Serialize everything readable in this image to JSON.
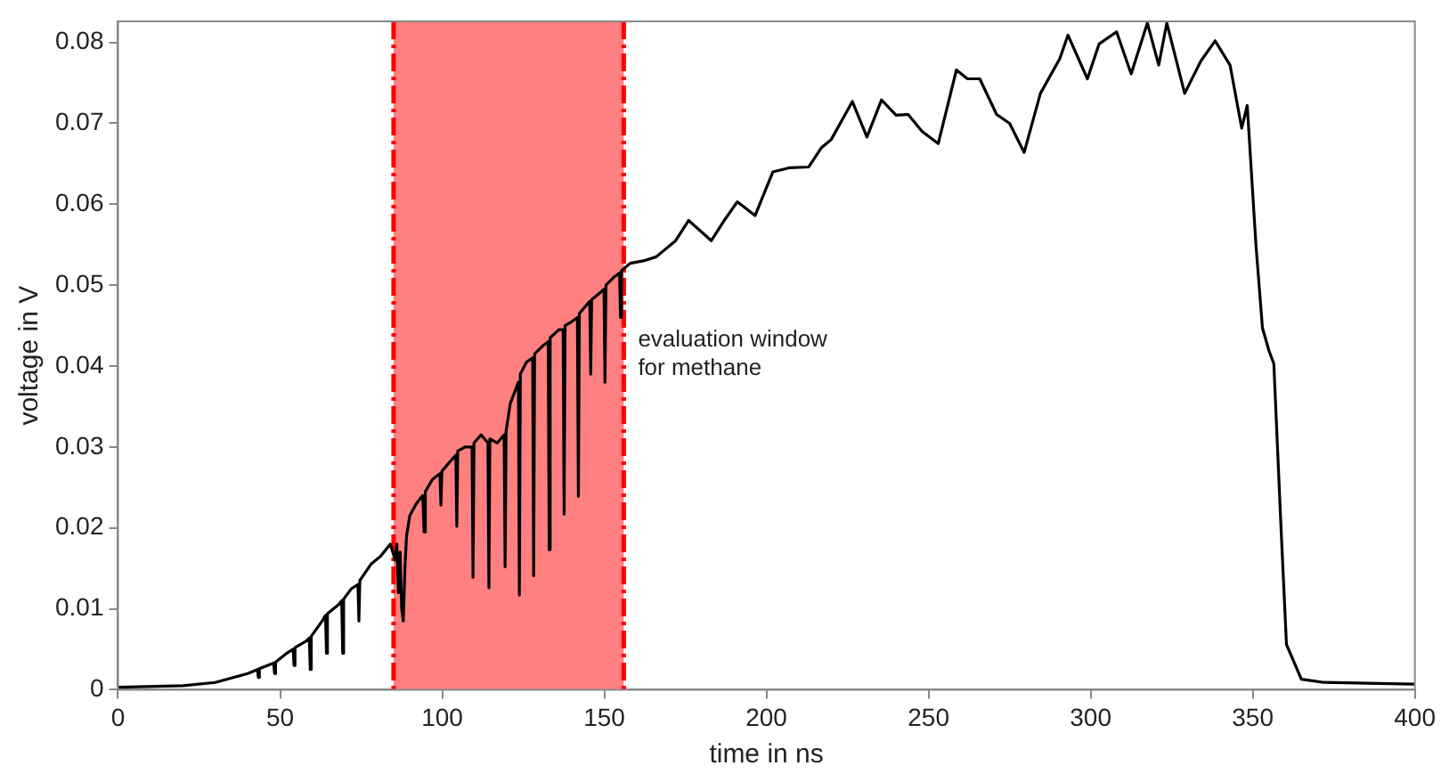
{
  "chart_data": {
    "type": "line",
    "xlabel": "time in ns",
    "ylabel": "voltage in V",
    "xlim": [
      0,
      400
    ],
    "xticks": [
      0,
      50,
      100,
      150,
      200,
      250,
      300,
      350,
      400
    ],
    "ylim": [
      0,
      0.0826
    ],
    "yticks": [
      0,
      0.01,
      0.02,
      0.03,
      0.04,
      0.05,
      0.06,
      0.07,
      0.08
    ],
    "grid": false,
    "legend": false,
    "marker": "none",
    "line_style": "solid",
    "bands": [
      {
        "axis": "x",
        "from": 85,
        "to": 156,
        "label": "evaluation window\nfor methane",
        "color": "#ff8080"
      }
    ],
    "ref_lines": [
      {
        "axis": "x",
        "value": 85,
        "color": "#ff0000",
        "line_style": "dashed"
      },
      {
        "axis": "x",
        "value": 156,
        "color": "#ff0000",
        "line_style": "dashed"
      }
    ],
    "series": [
      {
        "color": "#000000",
        "x": [
          0,
          20,
          30,
          40,
          43,
          43.3,
          43.6,
          48,
          48.3,
          48.6,
          52,
          54,
          54.3,
          54.6,
          58,
          59,
          59.3,
          59.6,
          63,
          64,
          64.3,
          64.6,
          68,
          69,
          69.3,
          69.6,
          72,
          74,
          74.3,
          74.6,
          78,
          81,
          84,
          85.5,
          86,
          86.5,
          87,
          87.5,
          88,
          88.5,
          89,
          90,
          92,
          94,
          94.4,
          94.8,
          97,
          99.3,
          99.6,
          99.9,
          102,
          104.2,
          104.5,
          104.8,
          107,
          109.2,
          109.5,
          109.8,
          112,
          114.1,
          114.4,
          114.7,
          117,
          119.1,
          119.4,
          119.7,
          121,
          123.5,
          123.8,
          124.1,
          126,
          127.9,
          128.2,
          128.5,
          131,
          132.7,
          133,
          133.3,
          136,
          137.3,
          137.6,
          137.9,
          140,
          141.7,
          142,
          142.3,
          145.5,
          145.8,
          146.1,
          148.5,
          149.9,
          150.2,
          150.5,
          153,
          154.7,
          155,
          155.3,
          158,
          162,
          166,
          172,
          176,
          183,
          187,
          191,
          196.5,
          202,
          207,
          213,
          217,
          220,
          226.5,
          231,
          235.5,
          240,
          243.7,
          248,
          253,
          258.6,
          262,
          265.8,
          271,
          275,
          279.5,
          284.5,
          290.5,
          293,
          299,
          302.6,
          308,
          312.5,
          317.5,
          321,
          323.5,
          329,
          334,
          338.4,
          343,
          346.6,
          348.3,
          351,
          353,
          355,
          356.5,
          358.7,
          360.4,
          365,
          372,
          400
        ],
        "values": [
          0.0003,
          0.0005,
          0.0009,
          0.002,
          0.0025,
          0.0015,
          0.0026,
          0.0033,
          0.002,
          0.0034,
          0.0045,
          0.005,
          0.003,
          0.0052,
          0.006,
          0.0064,
          0.0025,
          0.0066,
          0.0085,
          0.0092,
          0.0045,
          0.0094,
          0.0105,
          0.011,
          0.0045,
          0.0112,
          0.0125,
          0.013,
          0.0085,
          0.0135,
          0.0155,
          0.0165,
          0.018,
          0.016,
          0.018,
          0.012,
          0.017,
          0.01,
          0.0085,
          0.015,
          0.019,
          0.0215,
          0.023,
          0.024,
          0.0195,
          0.0245,
          0.026,
          0.0267,
          0.0228,
          0.027,
          0.028,
          0.029,
          0.0202,
          0.0295,
          0.03,
          0.03,
          0.0139,
          0.0305,
          0.0315,
          0.0305,
          0.0126,
          0.031,
          0.0305,
          0.0315,
          0.0152,
          0.032,
          0.0354,
          0.038,
          0.0117,
          0.039,
          0.0405,
          0.041,
          0.0141,
          0.0415,
          0.0425,
          0.043,
          0.0173,
          0.0435,
          0.0445,
          0.0445,
          0.0217,
          0.045,
          0.0455,
          0.046,
          0.0239,
          0.0465,
          0.048,
          0.039,
          0.0482,
          0.049,
          0.0495,
          0.038,
          0.05,
          0.051,
          0.0515,
          0.046,
          0.0518,
          0.0527,
          0.053,
          0.0535,
          0.0555,
          0.058,
          0.0555,
          0.058,
          0.0603,
          0.0586,
          0.064,
          0.0645,
          0.0646,
          0.067,
          0.068,
          0.0727,
          0.0683,
          0.0729,
          0.071,
          0.0711,
          0.069,
          0.0675,
          0.0766,
          0.0755,
          0.0755,
          0.0711,
          0.07,
          0.0664,
          0.0737,
          0.078,
          0.0809,
          0.0755,
          0.0798,
          0.0813,
          0.0761,
          0.0824,
          0.0772,
          0.0824,
          0.0737,
          0.0777,
          0.0802,
          0.0772,
          0.0694,
          0.0722,
          0.0549,
          0.0447,
          0.0419,
          0.0403,
          0.0202,
          0.0056,
          0.0013,
          0.0009,
          0.0007
        ]
      }
    ]
  }
}
